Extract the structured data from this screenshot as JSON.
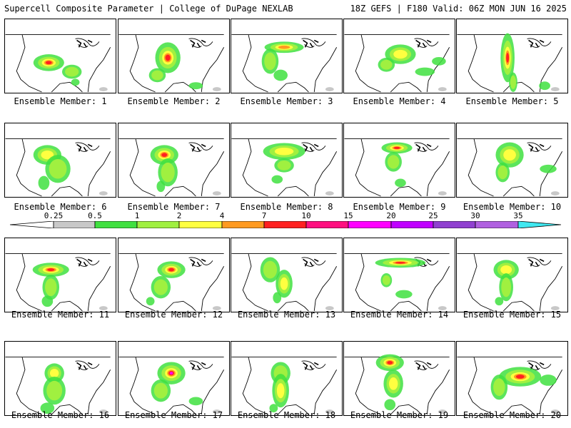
{
  "header": {
    "title": "Supercell Composite Parameter | College of DuPage NEXLAB",
    "run_info": "18Z GEFS | F180 Valid: 06Z MON JUN 16 2025"
  },
  "legend": {
    "ticks": [
      "0.25",
      "0.5",
      "1",
      "2",
      "4",
      "7",
      "10",
      "15",
      "20",
      "25",
      "30",
      "35"
    ],
    "colors": [
      "#c8c8c8",
      "#40e040",
      "#a0f040",
      "#ffff40",
      "#ff9a20",
      "#ff2020",
      "#ff1080",
      "#ff00ff",
      "#c000ff",
      "#9040d0",
      "#b060e0",
      "#40e8f0"
    ]
  },
  "panels": [
    {
      "label": "Ensemble Member: 1"
    },
    {
      "label": "Ensemble Member: 2"
    },
    {
      "label": "Ensemble Member: 3"
    },
    {
      "label": "Ensemble Member: 4"
    },
    {
      "label": "Ensemble Member: 5"
    },
    {
      "label": "Ensemble Member: 6"
    },
    {
      "label": "Ensemble Member: 7"
    },
    {
      "label": "Ensemble Member: 8"
    },
    {
      "label": "Ensemble Member: 9"
    },
    {
      "label": "Ensemble Member: 10"
    },
    {
      "label": "Ensemble Member: 11"
    },
    {
      "label": "Ensemble Member: 12"
    },
    {
      "label": "Ensemble Member: 13"
    },
    {
      "label": "Ensemble Member: 14"
    },
    {
      "label": "Ensemble Member: 15"
    },
    {
      "label": "Ensemble Member: 16"
    },
    {
      "label": "Ensemble Member: 17"
    },
    {
      "label": "Ensemble Member: 18"
    },
    {
      "label": "Ensemble Member: 19"
    },
    {
      "label": "Ensemble Member: 20"
    }
  ]
}
